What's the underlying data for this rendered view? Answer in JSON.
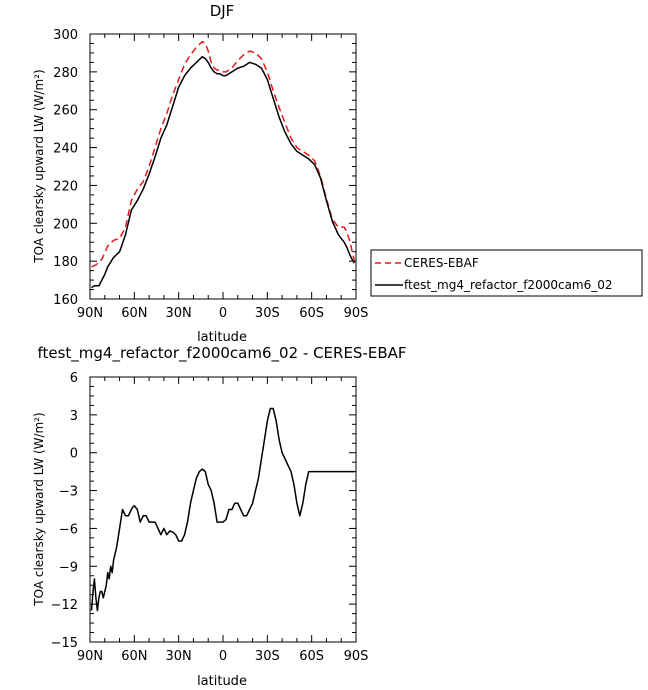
{
  "chart_data": [
    {
      "type": "line",
      "title": "DJF",
      "xlabel": "latitude",
      "ylabel": "TOA clearsky upward LW (W/m²)",
      "xlim": [
        90,
        -90
      ],
      "ylim": [
        160,
        300
      ],
      "x_ticks": [
        90,
        60,
        30,
        0,
        -30,
        -60,
        -90
      ],
      "x_tick_labels": [
        "90N",
        "60N",
        "30N",
        "0",
        "30S",
        "60S",
        "90S"
      ],
      "y_ticks": [
        160,
        180,
        200,
        220,
        240,
        260,
        280,
        300
      ],
      "y_tick_labels": [
        "160",
        "180",
        "200",
        "220",
        "240",
        "260",
        "280",
        "300"
      ],
      "legend_position": "outside-right",
      "series": [
        {
          "name": "CERES-EBAF",
          "style": "dashed",
          "color": "#e8191a",
          "x": [
            89,
            86,
            82,
            78,
            74,
            70,
            66,
            62,
            58,
            54,
            50,
            46,
            42,
            38,
            34,
            30,
            26,
            22,
            18,
            14,
            12,
            10,
            8,
            6,
            4,
            2,
            0,
            -2,
            -4,
            -6,
            -8,
            -10,
            -14,
            -18,
            -22,
            -26,
            -30,
            -34,
            -38,
            -42,
            -46,
            -50,
            -54,
            -58,
            -62,
            -66,
            -70,
            -74,
            -78,
            -80,
            -82,
            -84,
            -86,
            -88,
            -89
          ],
          "y": [
            177,
            178,
            181,
            188,
            191,
            192,
            198,
            212,
            218,
            222,
            230,
            240,
            250,
            258,
            268,
            276,
            284,
            289,
            293,
            296,
            295,
            291,
            285,
            282,
            281,
            281,
            280,
            280,
            281,
            282,
            284,
            286,
            289,
            291,
            290,
            287,
            280,
            270,
            261,
            253,
            245,
            240,
            238,
            236,
            233,
            225,
            213,
            202,
            198,
            198,
            198,
            195,
            190,
            183,
            180
          ]
        },
        {
          "name": "ftest_mg4_refactor_f2000cam6_02",
          "style": "solid",
          "color": "#000000",
          "x": [
            89,
            87,
            84,
            82,
            80,
            78,
            74,
            70,
            66,
            62,
            58,
            54,
            50,
            46,
            42,
            38,
            34,
            30,
            26,
            22,
            18,
            14,
            12,
            10,
            8,
            6,
            4,
            2,
            0,
            -2,
            -4,
            -6,
            -8,
            -10,
            -14,
            -18,
            -22,
            -26,
            -30,
            -34,
            -38,
            -42,
            -46,
            -50,
            -54,
            -58,
            -62,
            -66,
            -70,
            -74,
            -78,
            -80,
            -82,
            -84,
            -86,
            -88,
            -89
          ],
          "y": [
            166,
            167,
            167,
            170,
            173,
            177,
            182,
            185,
            194,
            207,
            212,
            218,
            226,
            235,
            245,
            252,
            262,
            272,
            278,
            282,
            285,
            288,
            287,
            285,
            282,
            280,
            279,
            279,
            278,
            278,
            279,
            280,
            281,
            282,
            283,
            285,
            284,
            282,
            276,
            266,
            256,
            248,
            242,
            238,
            236,
            234,
            231,
            224,
            212,
            201,
            194,
            192,
            190,
            187,
            183,
            180,
            179
          ]
        }
      ]
    },
    {
      "type": "line",
      "title": "ftest_mg4_refactor_f2000cam6_02 - CERES-EBAF",
      "xlabel": "latitude",
      "ylabel": "TOA clearsky upward LW (W/m²)",
      "xlim": [
        90,
        -90
      ],
      "ylim": [
        -15,
        6
      ],
      "x_ticks": [
        90,
        60,
        30,
        0,
        -30,
        -60,
        -90
      ],
      "x_tick_labels": [
        "90N",
        "60N",
        "30N",
        "0",
        "30S",
        "60S",
        "90S"
      ],
      "y_ticks": [
        -15,
        -12,
        -9,
        -6,
        -3,
        0,
        3,
        6
      ],
      "y_tick_labels": [
        "−15",
        "−12",
        "−9",
        "−6",
        "−3",
        "0",
        "3",
        "6"
      ],
      "series": [
        {
          "style": "solid",
          "color": "#000000",
          "x": [
            89,
            88,
            87,
            86,
            85,
            84,
            83,
            82,
            81,
            80,
            79,
            78,
            77,
            76,
            75,
            74,
            73,
            72,
            70,
            68,
            66,
            64,
            62,
            61,
            60,
            58,
            56,
            54,
            52,
            50,
            48,
            46,
            44,
            42,
            40,
            38,
            36,
            34,
            32,
            30,
            28,
            26,
            24,
            22,
            20,
            18,
            16,
            14,
            12,
            10,
            8,
            6,
            4,
            2,
            0,
            -2,
            -4,
            -6,
            -8,
            -10,
            -12,
            -14,
            -16,
            -18,
            -20,
            -22,
            -24,
            -26,
            -28,
            -30,
            -32,
            -34,
            -36,
            -38,
            -40,
            -42,
            -44,
            -46,
            -48,
            -50,
            -52,
            -54,
            -56,
            -58,
            -60,
            -62,
            -64,
            -66,
            -68,
            -70,
            -72,
            -74,
            -76,
            -78,
            -80,
            -82,
            -84,
            -86,
            -88,
            -89
          ],
          "y": [
            -12.5,
            -11,
            -10,
            -11.5,
            -12.5,
            -11.5,
            -11,
            -11,
            -11.5,
            -11,
            -10.5,
            -9.5,
            -10,
            -9,
            -9.5,
            -8.5,
            -8,
            -7.5,
            -6,
            -4.5,
            -5,
            -5,
            -4.5,
            -4.3,
            -4.2,
            -4.5,
            -5.5,
            -5,
            -5,
            -5.5,
            -5.5,
            -5.5,
            -6,
            -6.5,
            -6,
            -6.5,
            -6.2,
            -6.3,
            -6.5,
            -7,
            -7,
            -6.5,
            -5.5,
            -4,
            -3,
            -2,
            -1.5,
            -1.3,
            -1.5,
            -2.5,
            -3,
            -4,
            -5.5,
            -5.5,
            -5.5,
            -5.3,
            -4.5,
            -4.5,
            -4,
            -4,
            -4.5,
            -5,
            -5,
            -4.5,
            -4,
            -3,
            -2,
            -0.5,
            1,
            2.5,
            3.5,
            3.5,
            2.5,
            1,
            0,
            -0.5,
            -1,
            -1.5,
            -2.5,
            -4,
            -5,
            -4,
            -2.5,
            -1.5,
            -1.5,
            -1.5,
            -1.5,
            -1.5,
            -1.5,
            -1.5,
            -1.5,
            -1.5,
            -1.5,
            -1.5,
            -1.5,
            -1.5,
            -1.5,
            -1.5,
            -1.5,
            -1.5
          ]
        }
      ]
    }
  ]
}
